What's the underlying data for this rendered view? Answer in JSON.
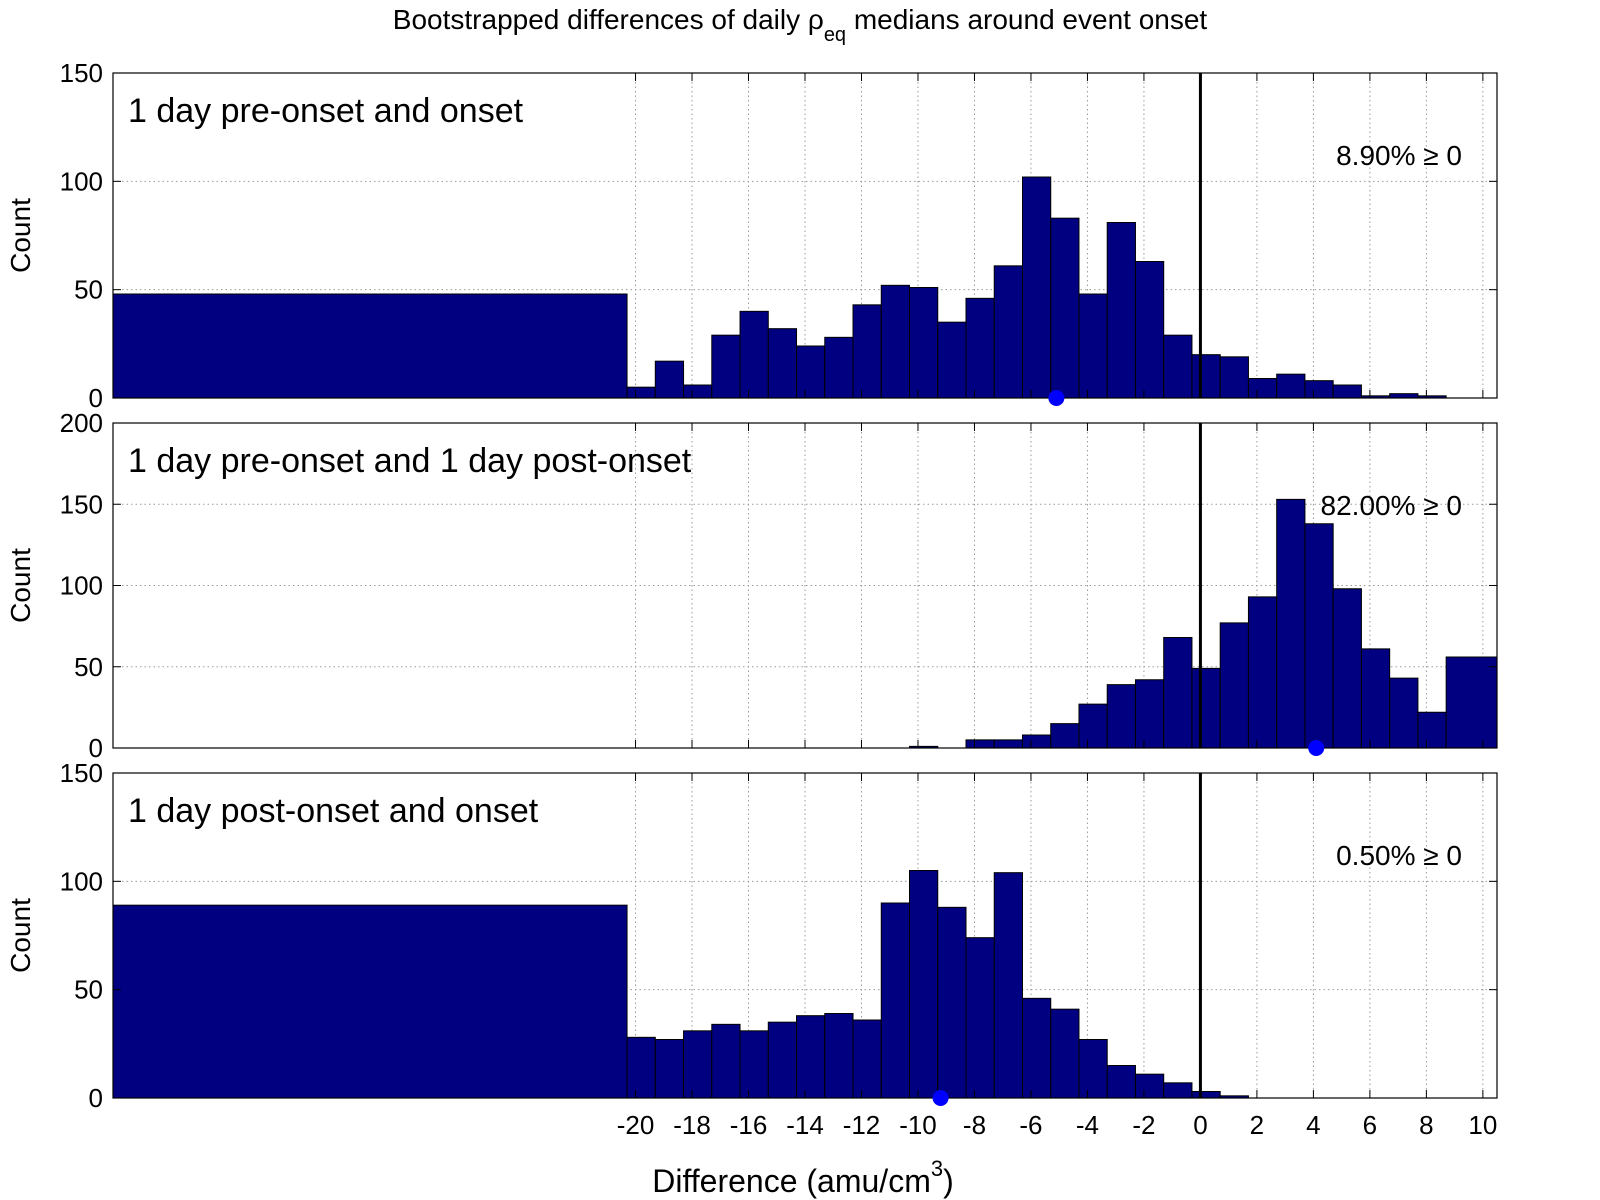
{
  "figure": {
    "title_main": "Bootstrapped differences of daily ",
    "title_sym": "ρ",
    "title_sub": "eq",
    "title_rest": " medians around event onset",
    "xlabel_main": "Difference (amu/cm",
    "xlabel_sup": "3",
    "xlabel_end": ")"
  },
  "chart_data": [
    {
      "type": "bar",
      "title": "1 day pre-onset and onset",
      "annotation": "8.90% ≥ 0",
      "ylabel": "Count",
      "xlabel": "",
      "ylim": [
        0,
        150
      ],
      "yticks": [
        0,
        50,
        100,
        150
      ],
      "xlim": [
        -38.5,
        10.5
      ],
      "xticks": [
        -20,
        -18,
        -16,
        -14,
        -12,
        -10,
        -8,
        -6,
        -4,
        -2,
        0,
        2,
        4,
        6,
        8,
        10
      ],
      "grid": true,
      "reference_line_x": 0,
      "median_marker_x": -5.1,
      "bars": [
        {
          "x0": -38.5,
          "x1": -20.3,
          "y": 48
        },
        {
          "x0": -20.3,
          "x1": -19.3,
          "y": 5
        },
        {
          "x0": -19.3,
          "x1": -18.3,
          "y": 17
        },
        {
          "x0": -18.3,
          "x1": -17.3,
          "y": 6
        },
        {
          "x0": -17.3,
          "x1": -16.3,
          "y": 29
        },
        {
          "x0": -16.3,
          "x1": -15.3,
          "y": 40
        },
        {
          "x0": -15.3,
          "x1": -14.3,
          "y": 32
        },
        {
          "x0": -14.3,
          "x1": -13.3,
          "y": 24
        },
        {
          "x0": -13.3,
          "x1": -12.3,
          "y": 28
        },
        {
          "x0": -12.3,
          "x1": -11.3,
          "y": 43
        },
        {
          "x0": -11.3,
          "x1": -10.3,
          "y": 52
        },
        {
          "x0": -10.3,
          "x1": -9.3,
          "y": 51
        },
        {
          "x0": -9.3,
          "x1": -8.3,
          "y": 35
        },
        {
          "x0": -8.3,
          "x1": -7.3,
          "y": 46
        },
        {
          "x0": -7.3,
          "x1": -6.3,
          "y": 61
        },
        {
          "x0": -6.3,
          "x1": -5.3,
          "y": 102
        },
        {
          "x0": -5.3,
          "x1": -4.3,
          "y": 83
        },
        {
          "x0": -4.3,
          "x1": -3.3,
          "y": 48
        },
        {
          "x0": -3.3,
          "x1": -2.3,
          "y": 81
        },
        {
          "x0": -2.3,
          "x1": -1.3,
          "y": 63
        },
        {
          "x0": -1.3,
          "x1": -0.3,
          "y": 29
        },
        {
          "x0": -0.3,
          "x1": 0.7,
          "y": 20
        },
        {
          "x0": 0.7,
          "x1": 1.7,
          "y": 19
        },
        {
          "x0": 1.7,
          "x1": 2.7,
          "y": 9
        },
        {
          "x0": 2.7,
          "x1": 3.7,
          "y": 11
        },
        {
          "x0": 3.7,
          "x1": 4.7,
          "y": 8
        },
        {
          "x0": 4.7,
          "x1": 5.7,
          "y": 6
        },
        {
          "x0": 5.7,
          "x1": 6.7,
          "y": 1
        },
        {
          "x0": 6.7,
          "x1": 7.7,
          "y": 2
        },
        {
          "x0": 7.7,
          "x1": 8.7,
          "y": 1
        }
      ]
    },
    {
      "type": "bar",
      "title": "1 day pre-onset and 1 day post-onset",
      "annotation": "82.00% ≥ 0",
      "ylabel": "Count",
      "xlabel": "",
      "ylim": [
        0,
        200
      ],
      "yticks": [
        0,
        50,
        100,
        150,
        200
      ],
      "xlim": [
        -38.5,
        10.5
      ],
      "xticks": [
        -20,
        -18,
        -16,
        -14,
        -12,
        -10,
        -8,
        -6,
        -4,
        -2,
        0,
        2,
        4,
        6,
        8,
        10
      ],
      "grid": true,
      "reference_line_x": 0,
      "median_marker_x": 4.1,
      "bars": [
        {
          "x0": -10.3,
          "x1": -9.3,
          "y": 1
        },
        {
          "x0": -8.3,
          "x1": -7.3,
          "y": 5
        },
        {
          "x0": -7.3,
          "x1": -6.3,
          "y": 5
        },
        {
          "x0": -6.3,
          "x1": -5.3,
          "y": 8
        },
        {
          "x0": -5.3,
          "x1": -4.3,
          "y": 15
        },
        {
          "x0": -4.3,
          "x1": -3.3,
          "y": 27
        },
        {
          "x0": -3.3,
          "x1": -2.3,
          "y": 39
        },
        {
          "x0": -2.3,
          "x1": -1.3,
          "y": 42
        },
        {
          "x0": -1.3,
          "x1": -0.3,
          "y": 68
        },
        {
          "x0": -0.3,
          "x1": 0.7,
          "y": 49
        },
        {
          "x0": 0.7,
          "x1": 1.7,
          "y": 77
        },
        {
          "x0": 1.7,
          "x1": 2.7,
          "y": 93
        },
        {
          "x0": 2.7,
          "x1": 3.7,
          "y": 153
        },
        {
          "x0": 3.7,
          "x1": 4.7,
          "y": 138
        },
        {
          "x0": 4.7,
          "x1": 5.7,
          "y": 98
        },
        {
          "x0": 5.7,
          "x1": 6.7,
          "y": 61
        },
        {
          "x0": 6.7,
          "x1": 7.7,
          "y": 43
        },
        {
          "x0": 7.7,
          "x1": 8.7,
          "y": 22
        },
        {
          "x0": 8.7,
          "x1": 10.5,
          "y": 56
        }
      ]
    },
    {
      "type": "bar",
      "title": "1 day post-onset and onset",
      "annotation": "0.50% ≥ 0",
      "ylabel": "Count",
      "xlabel": "Difference (amu/cm3)",
      "ylim": [
        0,
        150
      ],
      "yticks": [
        0,
        50,
        100,
        150
      ],
      "xlim": [
        -38.5,
        10.5
      ],
      "xticks": [
        -20,
        -18,
        -16,
        -14,
        -12,
        -10,
        -8,
        -6,
        -4,
        -2,
        0,
        2,
        4,
        6,
        8,
        10
      ],
      "grid": true,
      "reference_line_x": 0,
      "median_marker_x": -9.2,
      "bars": [
        {
          "x0": -38.5,
          "x1": -20.3,
          "y": 89
        },
        {
          "x0": -20.3,
          "x1": -19.3,
          "y": 28
        },
        {
          "x0": -19.3,
          "x1": -18.3,
          "y": 27
        },
        {
          "x0": -18.3,
          "x1": -17.3,
          "y": 31
        },
        {
          "x0": -17.3,
          "x1": -16.3,
          "y": 34
        },
        {
          "x0": -16.3,
          "x1": -15.3,
          "y": 31
        },
        {
          "x0": -15.3,
          "x1": -14.3,
          "y": 35
        },
        {
          "x0": -14.3,
          "x1": -13.3,
          "y": 38
        },
        {
          "x0": -13.3,
          "x1": -12.3,
          "y": 39
        },
        {
          "x0": -12.3,
          "x1": -11.3,
          "y": 36
        },
        {
          "x0": -11.3,
          "x1": -10.3,
          "y": 90
        },
        {
          "x0": -10.3,
          "x1": -9.3,
          "y": 105
        },
        {
          "x0": -9.3,
          "x1": -8.3,
          "y": 88
        },
        {
          "x0": -8.3,
          "x1": -7.3,
          "y": 74
        },
        {
          "x0": -7.3,
          "x1": -6.3,
          "y": 104
        },
        {
          "x0": -6.3,
          "x1": -5.3,
          "y": 46
        },
        {
          "x0": -5.3,
          "x1": -4.3,
          "y": 41
        },
        {
          "x0": -4.3,
          "x1": -3.3,
          "y": 27
        },
        {
          "x0": -3.3,
          "x1": -2.3,
          "y": 15
        },
        {
          "x0": -2.3,
          "x1": -1.3,
          "y": 11
        },
        {
          "x0": -1.3,
          "x1": -0.3,
          "y": 7
        },
        {
          "x0": -0.3,
          "x1": 0.7,
          "y": 3
        },
        {
          "x0": 0.7,
          "x1": 1.7,
          "y": 1
        }
      ]
    }
  ],
  "colors": {
    "bar_fill": "#000080",
    "bar_edge": "#000000",
    "marker": "#0000ff",
    "grid": "#9a9a9a",
    "reference_line": "#000000"
  }
}
